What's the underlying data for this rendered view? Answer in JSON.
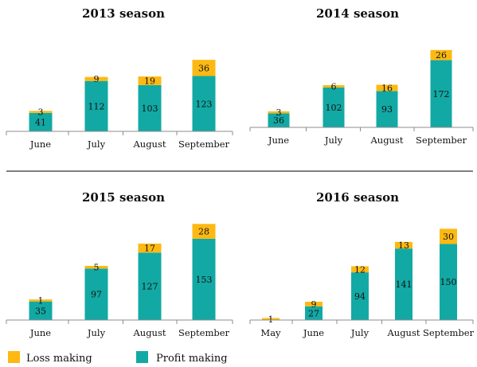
{
  "colors": {
    "profit": "#12A9A5",
    "loss": "#FDB913",
    "axis": "#8c8c8c",
    "divider": "#333333"
  },
  "legend": {
    "loss_label": "Loss making",
    "profit_label": "Profit making"
  },
  "chart_data": [
    {
      "type": "bar",
      "stacked": true,
      "title": "2013 season",
      "categories": [
        "June",
        "July",
        "August",
        "September"
      ],
      "series": [
        {
          "name": "Profit making",
          "values": [
            41,
            112,
            103,
            123
          ]
        },
        {
          "name": "Loss making",
          "values": [
            3,
            9,
            19,
            36
          ]
        }
      ]
    },
    {
      "type": "bar",
      "stacked": true,
      "title": "2014 season",
      "categories": [
        "June",
        "July",
        "August",
        "September"
      ],
      "series": [
        {
          "name": "Profit making",
          "values": [
            36,
            102,
            93,
            172
          ]
        },
        {
          "name": "Loss making",
          "values": [
            3,
            6,
            16,
            26
          ]
        }
      ]
    },
    {
      "type": "bar",
      "stacked": true,
      "title": "2015 season",
      "categories": [
        "June",
        "July",
        "August",
        "September"
      ],
      "series": [
        {
          "name": "Profit making",
          "values": [
            35,
            97,
            127,
            153
          ]
        },
        {
          "name": "Loss making",
          "values": [
            1,
            5,
            17,
            28
          ]
        }
      ]
    },
    {
      "type": "bar",
      "stacked": true,
      "title": "2016 season",
      "categories": [
        "May",
        "June",
        "July",
        "August",
        "September"
      ],
      "series": [
        {
          "name": "Profit making",
          "values": [
            0,
            27,
            94,
            141,
            150
          ]
        },
        {
          "name": "Loss making",
          "values": [
            1,
            9,
            12,
            13,
            30
          ]
        }
      ]
    }
  ]
}
